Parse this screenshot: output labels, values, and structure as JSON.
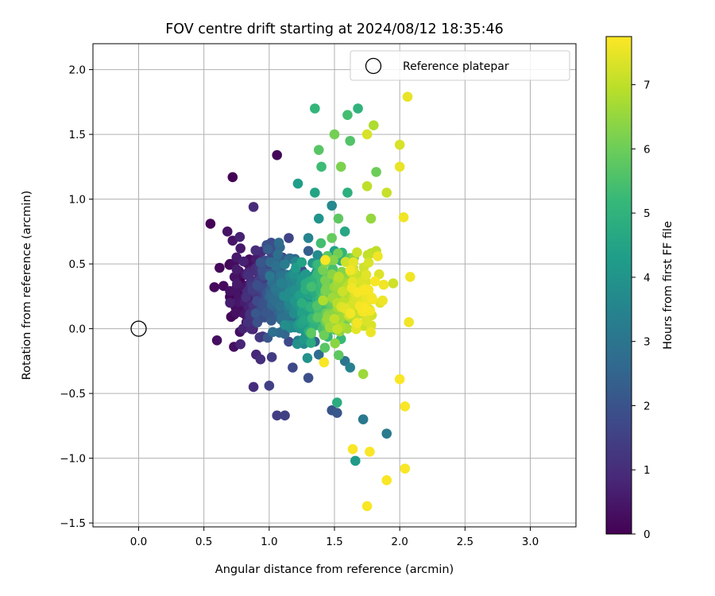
{
  "chart_data": {
    "type": "scatter",
    "title": "FOV centre drift starting at 2024/08/12 18:35:46",
    "xlabel": "Angular distance from reference (arcmin)",
    "ylabel": "Rotation from reference (arcmin)",
    "xlim": [
      -0.35,
      3.35
    ],
    "ylim": [
      -1.53,
      2.2
    ],
    "xticks": [
      0.0,
      0.5,
      1.0,
      1.5,
      2.0,
      2.5,
      3.0
    ],
    "xtick_labels": [
      "0.0",
      "0.5",
      "1.0",
      "1.5",
      "2.0",
      "2.5",
      "3.0"
    ],
    "yticks": [
      -1.5,
      -1.0,
      -0.5,
      0.0,
      0.5,
      1.0,
      1.5,
      2.0
    ],
    "ytick_labels": [
      "−1.5",
      "−1.0",
      "−0.5",
      "0.0",
      "0.5",
      "1.0",
      "1.5",
      "2.0"
    ],
    "grid": true,
    "legend": {
      "position": "top-right",
      "entries": [
        "Reference platepar"
      ]
    },
    "reference": {
      "x": 0.0,
      "y": 0.0,
      "marker": "open-circle",
      "label": "Reference platepar"
    },
    "colorbar": {
      "label": "Hours from first FF file",
      "colormap": "viridis",
      "min": 0,
      "max": 7.75,
      "ticks": [
        0,
        1,
        2,
        3,
        4,
        5,
        6,
        7
      ],
      "tick_labels": [
        "0",
        "1",
        "2",
        "3",
        "4",
        "5",
        "6",
        "7"
      ]
    },
    "points": [
      [
        0.55,
        0.81,
        0.05
      ],
      [
        0.72,
        1.17,
        0.05
      ],
      [
        1.06,
        1.34,
        0.1
      ],
      [
        0.62,
        0.47,
        0.15
      ],
      [
        0.58,
        0.32,
        0.2
      ],
      [
        0.65,
        0.33,
        0.2
      ],
      [
        0.73,
        -0.14,
        0.3
      ],
      [
        0.6,
        -0.09,
        0.3
      ],
      [
        0.7,
        0.29,
        0.35
      ],
      [
        0.68,
        0.75,
        0.4
      ],
      [
        0.72,
        0.68,
        0.45
      ],
      [
        0.78,
        0.62,
        0.5
      ],
      [
        0.75,
        0.55,
        0.55
      ],
      [
        0.82,
        0.42,
        0.6
      ],
      [
        0.7,
        0.2,
        0.65
      ],
      [
        0.85,
        0.1,
        0.7
      ],
      [
        0.8,
        0.0,
        0.75
      ],
      [
        0.78,
        -0.12,
        0.8
      ],
      [
        0.9,
        -0.2,
        0.85
      ],
      [
        0.95,
        0.25,
        0.9
      ],
      [
        0.88,
        0.94,
        0.95
      ],
      [
        0.88,
        -0.45,
        1.0
      ],
      [
        1.0,
        0.65,
        1.05
      ],
      [
        0.92,
        0.35,
        1.1
      ],
      [
        1.0,
        0.15,
        1.15
      ],
      [
        0.95,
        -0.06,
        1.2
      ],
      [
        1.05,
        0.45,
        1.25
      ],
      [
        1.1,
        0.55,
        1.3
      ],
      [
        1.02,
        -0.22,
        1.35
      ],
      [
        1.06,
        -0.67,
        1.4
      ],
      [
        1.12,
        -0.67,
        1.45
      ],
      [
        1.0,
        -0.44,
        1.5
      ],
      [
        1.1,
        0.3,
        1.55
      ],
      [
        1.15,
        0.7,
        1.6
      ],
      [
        1.2,
        0.1,
        1.65
      ],
      [
        1.18,
        -0.3,
        1.7
      ],
      [
        1.15,
        -0.1,
        1.75
      ],
      [
        1.25,
        0.45,
        1.8
      ],
      [
        1.2,
        0.25,
        1.85
      ],
      [
        1.3,
        -0.38,
        1.9
      ],
      [
        1.48,
        -0.63,
        2.0
      ],
      [
        1.52,
        -0.65,
        2.1
      ],
      [
        1.25,
        0.0,
        2.2
      ],
      [
        1.3,
        0.6,
        2.3
      ],
      [
        1.35,
        -0.1,
        2.4
      ],
      [
        1.28,
        0.35,
        2.5
      ],
      [
        1.4,
        0.2,
        2.6
      ],
      [
        1.38,
        -0.2,
        2.7
      ],
      [
        1.32,
        0.15,
        2.8
      ],
      [
        1.45,
        0.05,
        2.9
      ],
      [
        1.58,
        -0.25,
        3.0
      ],
      [
        1.72,
        -0.7,
        3.1
      ],
      [
        1.9,
        -0.81,
        3.2
      ],
      [
        1.35,
        0.5,
        3.3
      ],
      [
        1.62,
        -0.3,
        3.4
      ],
      [
        1.3,
        0.7,
        3.5
      ],
      [
        1.42,
        0.3,
        3.6
      ],
      [
        1.48,
        0.95,
        3.7
      ],
      [
        1.55,
        0.4,
        3.8
      ],
      [
        1.2,
        0.3,
        3.9
      ],
      [
        1.38,
        0.85,
        4.0
      ],
      [
        1.6,
        0.2,
        4.1
      ],
      [
        1.66,
        -1.02,
        4.2
      ],
      [
        1.22,
        1.12,
        4.3
      ],
      [
        1.5,
        0.6,
        4.4
      ],
      [
        1.35,
        1.05,
        4.5
      ],
      [
        1.58,
        0.75,
        4.6
      ],
      [
        1.45,
        0.15,
        4.7
      ],
      [
        1.52,
        -0.57,
        4.8
      ],
      [
        1.6,
        1.05,
        4.9
      ],
      [
        1.42,
        0.5,
        5.0
      ],
      [
        1.68,
        1.7,
        5.0
      ],
      [
        1.35,
        1.7,
        5.1
      ],
      [
        1.55,
        -0.08,
        5.2
      ],
      [
        1.4,
        1.25,
        5.3
      ],
      [
        1.6,
        1.65,
        5.4
      ],
      [
        1.45,
        0.35,
        5.5
      ],
      [
        1.62,
        1.45,
        5.6
      ],
      [
        1.38,
        1.38,
        5.7
      ],
      [
        1.53,
        0.85,
        5.8
      ],
      [
        1.48,
        0.7,
        5.9
      ],
      [
        1.42,
        -0.05,
        6.0
      ],
      [
        1.82,
        1.21,
        6.0
      ],
      [
        1.5,
        1.5,
        6.1
      ],
      [
        1.55,
        1.25,
        6.2
      ],
      [
        1.65,
        0.55,
        6.3
      ],
      [
        1.45,
        0.1,
        6.4
      ],
      [
        1.78,
        0.85,
        6.5
      ],
      [
        1.72,
        -0.35,
        6.6
      ],
      [
        1.6,
        0.0,
        6.7
      ],
      [
        1.8,
        1.57,
        6.8
      ],
      [
        1.7,
        0.2,
        6.9
      ],
      [
        1.75,
        1.1,
        7.0
      ],
      [
        1.82,
        0.6,
        7.0
      ],
      [
        1.9,
        1.05,
        7.1
      ],
      [
        1.95,
        0.35,
        7.2
      ],
      [
        1.75,
        1.5,
        7.3
      ],
      [
        2.0,
        1.42,
        7.3
      ],
      [
        1.85,
        0.2,
        7.4
      ],
      [
        2.06,
        1.79,
        7.5
      ],
      [
        2.0,
        1.25,
        7.5
      ],
      [
        2.03,
        0.86,
        7.6
      ],
      [
        2.08,
        0.4,
        7.6
      ],
      [
        2.07,
        0.05,
        7.6
      ],
      [
        2.0,
        -0.39,
        7.7
      ],
      [
        2.04,
        -0.6,
        7.7
      ],
      [
        2.04,
        -1.08,
        7.7
      ],
      [
        1.9,
        -1.17,
        7.7
      ],
      [
        1.77,
        -0.95,
        7.7
      ],
      [
        1.75,
        -1.37,
        7.7
      ],
      [
        1.64,
        -0.93,
        7.7
      ],
      [
        1.42,
        -0.26,
        7.7
      ],
      [
        1.43,
        0.53,
        7.7
      ]
    ]
  }
}
